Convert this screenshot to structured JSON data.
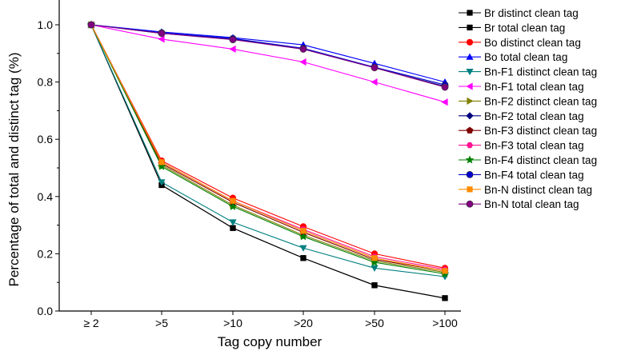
{
  "chart_data": {
    "type": "line",
    "xlabel": "Tag copy number",
    "ylabel": "Percentage of total and distinct tag (%)",
    "categories": [
      "≥ 2",
      ">5",
      ">10",
      ">20",
      ">50",
      ">100"
    ],
    "ylim": [
      0.0,
      1.05
    ],
    "yticks": [
      "0.0",
      "0.2",
      "0.4",
      "0.6",
      "0.8",
      "1.0"
    ],
    "grid": false,
    "legend_position": "right",
    "series": [
      {
        "name": "Br distinct clean tag",
        "color": "#000000",
        "marker": "square",
        "values": [
          1.0,
          0.44,
          0.29,
          0.185,
          0.09,
          0.045
        ]
      },
      {
        "name": "Br total clean tag",
        "color": "#000000",
        "marker": "square",
        "values": [
          1.0,
          0.44,
          0.29,
          0.185,
          0.09,
          0.045
        ]
      },
      {
        "name": "Bo distinct clean tag",
        "color": "#ff0000",
        "marker": "circle",
        "values": [
          1.0,
          0.525,
          0.395,
          0.295,
          0.2,
          0.15
        ]
      },
      {
        "name": "Bo total clean tag",
        "color": "#0000ff",
        "marker": "triangle-up",
        "values": [
          1.0,
          0.975,
          0.955,
          0.93,
          0.865,
          0.8
        ]
      },
      {
        "name": "Bn-F1 distinct clean tag",
        "color": "#008080",
        "marker": "triangle-down",
        "values": [
          1.0,
          0.45,
          0.31,
          0.22,
          0.15,
          0.12
        ]
      },
      {
        "name": "Bn-F1 total clean tag",
        "color": "#ff00ff",
        "marker": "triangle-left",
        "values": [
          1.0,
          0.95,
          0.915,
          0.87,
          0.8,
          0.73
        ]
      },
      {
        "name": "Bn-F2 distinct clean tag",
        "color": "#808000",
        "marker": "triangle-right",
        "values": [
          1.0,
          0.51,
          0.37,
          0.265,
          0.175,
          0.135
        ]
      },
      {
        "name": "Bn-F2 total clean tag",
        "color": "#000080",
        "marker": "diamond",
        "values": [
          1.0,
          0.97,
          0.95,
          0.915,
          0.85,
          0.785
        ]
      },
      {
        "name": "Bn-F3 distinct clean tag",
        "color": "#800000",
        "marker": "pentagon",
        "values": [
          1.0,
          0.515,
          0.38,
          0.275,
          0.18,
          0.14
        ]
      },
      {
        "name": "Bn-F3 total clean tag",
        "color": "#ff1493",
        "marker": "hexagon",
        "values": [
          1.0,
          0.52,
          0.385,
          0.285,
          0.19,
          0.145
        ]
      },
      {
        "name": "Bn-F4 distinct clean tag",
        "color": "#008000",
        "marker": "star",
        "values": [
          1.0,
          0.505,
          0.365,
          0.26,
          0.17,
          0.13
        ]
      },
      {
        "name": "Bn-F4 total clean tag",
        "color": "#0000cd",
        "marker": "sphere",
        "values": [
          1.0,
          0.972,
          0.952,
          0.918,
          0.852,
          0.79
        ]
      },
      {
        "name": "Bn-N distinct clean tag",
        "color": "#ff8c00",
        "marker": "square",
        "values": [
          1.0,
          0.52,
          0.385,
          0.28,
          0.185,
          0.14
        ]
      },
      {
        "name": "Bn-N total clean tag",
        "color": "#800080",
        "marker": "sphere",
        "values": [
          1.0,
          0.97,
          0.948,
          0.915,
          0.85,
          0.782
        ]
      }
    ]
  }
}
